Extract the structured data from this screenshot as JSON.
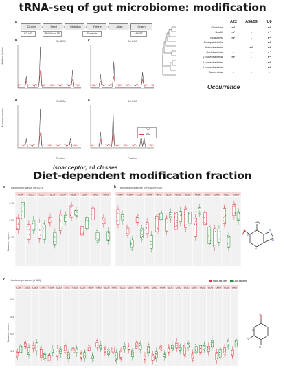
{
  "titles": {
    "top": "tRNA-seq of gut microbiome: modification",
    "bottom": "Diet-dependent modification fraction"
  },
  "captions": {
    "top_left": "Isoacceptor, all classes",
    "top_right": "Occurrence"
  },
  "pipeline": {
    "label": "a",
    "steps": [
      "Cluster",
      "Seed",
      "Mutation",
      "Refine",
      "Align",
      "Graph"
    ],
    "tools": [
      "CD-HIT",
      "tRNAScan-SE",
      "Samtools",
      "MAFFT"
    ]
  },
  "panels_top": [
    {
      "label": "b",
      "title": "SerGCU"
    },
    {
      "label": "c",
      "title": "SerUGA"
    },
    {
      "label": "d",
      "title": "SerGGA"
    },
    {
      "label": "e",
      "title": "SerCGA"
    }
  ],
  "axis_top": {
    "ylabel": "Mutation fraction",
    "xlabel": "Position"
  },
  "legend_top": {
    "items": [
      {
        "name": "-DM",
        "color": "#333333"
      },
      {
        "name": "+DM",
        "color": "#d9363e"
      }
    ]
  },
  "occurrence_table": {
    "headers": [
      "A22",
      "A58/59",
      "U8"
    ],
    "rows": [
      {
        "name": "Clostridia",
        "values": [
          "m¹",
          "-",
          "s⁴"
        ]
      },
      {
        "name": "Bacilli",
        "values": [
          "m¹",
          "-",
          "s⁴"
        ]
      },
      {
        "name": "Mollicutes",
        "values": [
          "m¹",
          "-",
          "s⁴"
        ]
      },
      {
        "name": "Erysipelotrichia",
        "values": [
          "-",
          "-",
          "s⁴"
        ]
      },
      {
        "name": "Actinobacteria",
        "values": [
          "-",
          "m¹",
          "s⁴"
        ]
      },
      {
        "name": "Coriobacteria",
        "values": [
          "-",
          "-",
          "s⁴"
        ]
      },
      {
        "name": "γ-proteobacteria",
        "values": [
          "m¹",
          "-",
          "s⁴"
        ]
      },
      {
        "name": "β-proteobacteria",
        "values": [
          "-",
          "-",
          "s⁴"
        ]
      },
      {
        "name": "δ-proteobacteria",
        "values": [
          "-",
          "-",
          "s⁴"
        ]
      },
      {
        "name": "Bacteroidia",
        "values": [
          "-",
          "-",
          "-"
        ]
      }
    ]
  },
  "panel_a": {
    "label": "a",
    "title": "Lachnospiraceae (m¹A22)",
    "ylabel": "Mutation fraction",
    "codons": [
      "CGA",
      "CUC",
      "CCC",
      "GCA",
      "GCU",
      "GGA",
      "UGA",
      "UUC",
      "UUG"
    ],
    "yticks": [
      "0.75",
      "0.50",
      "0.25"
    ]
  },
  "panel_b": {
    "label": "b",
    "title": "Bifidobacteriaceae (m¹A58/m¹A59)",
    "codons": [
      "CAU",
      "CGA",
      "CCU",
      "GAA",
      "GCU",
      "GUU",
      "GGG",
      "UGA",
      "UUA",
      "GUG",
      "UAG",
      "UUU",
      "UUG"
    ]
  },
  "panel_c": {
    "label": "c",
    "title": "Lachnospiraceae (s⁴U8)",
    "ylabel": "Mutation fraction",
    "codons": [
      "CAC",
      "CAU",
      "CGG",
      "CGC",
      "CGA",
      "CGU",
      "CCU",
      "CUG",
      "CUU",
      "GAA",
      "GAU",
      "GCA",
      "GCG",
      "GCU",
      "GGC",
      "GGG",
      "UAC",
      "UAU",
      "UCA",
      "UCC",
      "UCU",
      "UGC",
      "UUC",
      "UUG",
      "UUU",
      "UGG",
      "UUU",
      "UAA"
    ],
    "yticks": [
      "0.4",
      "0.3",
      "0.2",
      "0.1"
    ]
  },
  "legend_bottom": {
    "items": [
      {
        "name": "High-fat diet",
        "color": "#d9363e"
      },
      {
        "name": "Low-fat diet",
        "color": "#2e8b3a"
      }
    ]
  }
}
